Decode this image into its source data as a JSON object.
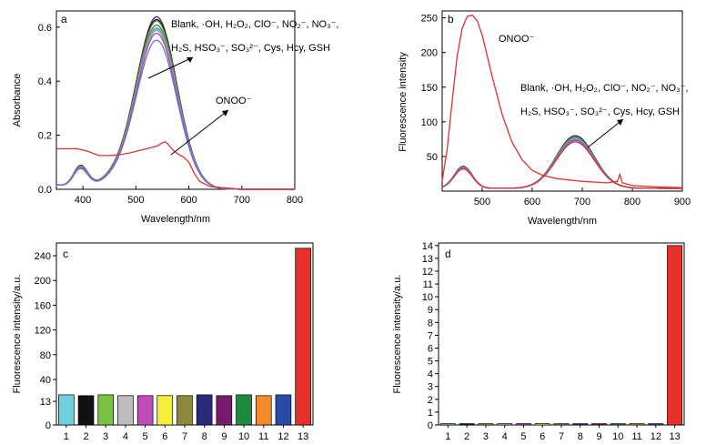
{
  "panels": {
    "a": "a",
    "b": "b",
    "c": "c",
    "d": "d"
  },
  "annotations": {
    "a_line1": "Blank, ·OH, H₂O₂, ClO⁻, NO₂⁻, NO₃⁻,",
    "a_line2": "H₂S, HSO₃⁻, SO₃²⁻, Cys, Hcy, GSH",
    "a_onoo": "ONOO⁻",
    "b_onoo": "ONOO⁻",
    "b_line1": "Blank, ·OH, H₂O₂, ClO⁻, NO₂⁻, NO₃⁻,",
    "b_line2": "H₂S, HSO₃⁻, SO₃²⁻, Cys, Hcy, GSH"
  },
  "chart_data": [
    {
      "id": "a",
      "type": "line",
      "xlabel": "Wavelength/nm",
      "ylabel": "Absorbance",
      "xlim": [
        350,
        800
      ],
      "ylim": [
        0,
        0.66
      ],
      "xticks": [
        400,
        500,
        600,
        700,
        800
      ],
      "yticks": [
        0.0,
        0.2,
        0.4,
        0.6
      ],
      "ytick_labels": [
        "0.0",
        "0.2",
        "0.4",
        "0.6"
      ],
      "series": [
        {
          "group": "others",
          "color": "#2c2c84",
          "peak": 0.63
        },
        {
          "group": "others",
          "color": "#000000",
          "peak": 0.62
        },
        {
          "group": "others",
          "color": "#8b8b2c",
          "peak": 0.615
        },
        {
          "group": "others",
          "color": "#3a8a3a",
          "peak": 0.6
        },
        {
          "group": "others",
          "color": "#6ab0e0",
          "peak": 0.59
        },
        {
          "group": "others",
          "color": "#5ab0a0",
          "peak": 0.585
        },
        {
          "group": "others",
          "color": "#aaaaaa",
          "peak": 0.58
        },
        {
          "group": "others",
          "color": "#b040b0",
          "peak": 0.57
        },
        {
          "group": "others",
          "color": "#7070d0",
          "peak": 0.545
        },
        {
          "group": "ONOO⁻",
          "color": "#e03030",
          "x": [
            350,
            370,
            390,
            410,
            430,
            450,
            470,
            490,
            500,
            510,
            520,
            530,
            540,
            550,
            555,
            560,
            570,
            580,
            590,
            600,
            610,
            620,
            640,
            700,
            800
          ],
          "y": [
            0.15,
            0.15,
            0.15,
            0.14,
            0.125,
            0.125,
            0.128,
            0.135,
            0.14,
            0.145,
            0.15,
            0.155,
            0.16,
            0.172,
            0.176,
            0.168,
            0.145,
            0.13,
            0.12,
            0.1,
            0.06,
            0.03,
            0.01,
            0.0,
            0.0
          ]
        }
      ]
    },
    {
      "id": "b",
      "type": "line",
      "xlabel": "Wavelength/nm",
      "ylabel": "Fluorescence intensity",
      "xlim": [
        420,
        900
      ],
      "ylim": [
        0,
        260
      ],
      "xticks": [
        500,
        600,
        700,
        800,
        900
      ],
      "yticks": [
        50,
        100,
        150,
        200,
        250
      ],
      "series": [
        {
          "group": "others",
          "color": "#2c2c84",
          "peak": 76
        },
        {
          "group": "others",
          "color": "#3a8a3a",
          "peak": 74
        },
        {
          "group": "others",
          "color": "#8b8b2c",
          "peak": 73
        },
        {
          "group": "others",
          "color": "#5ab0a0",
          "peak": 72
        },
        {
          "group": "others",
          "color": "#b040b0",
          "peak": 70
        },
        {
          "group": "others",
          "color": "#7070d0",
          "peak": 69
        },
        {
          "group": "others",
          "color": "#e03030",
          "peak": 67
        },
        {
          "group": "ONOO⁻",
          "color": "#e03030",
          "x": [
            420,
            430,
            440,
            450,
            460,
            470,
            480,
            490,
            500,
            520,
            540,
            560,
            580,
            600,
            620,
            650,
            700,
            750,
            770,
            775,
            780,
            800,
            850,
            900
          ],
          "y": [
            15,
            60,
            130,
            195,
            235,
            252,
            254,
            246,
            225,
            165,
            110,
            70,
            45,
            30,
            23,
            18,
            14,
            12,
            14,
            24,
            12,
            8,
            6,
            5
          ]
        }
      ]
    },
    {
      "id": "c",
      "type": "bar",
      "ylabel": "Fluorescence intensity/a.u.",
      "categories": [
        "1",
        "2",
        "3",
        "4",
        "5",
        "6",
        "7",
        "8",
        "9",
        "10",
        "11",
        "12",
        "13"
      ],
      "values": [
        21,
        20,
        21,
        20,
        20,
        20,
        20,
        21,
        20,
        21,
        20,
        21,
        252
      ],
      "colors": [
        "#6fcfdc",
        "#111111",
        "#7cc242",
        "#bdbdbd",
        "#c04cb8",
        "#f5ef3a",
        "#8c8a3a",
        "#2a2a7a",
        "#7a1a6e",
        "#1e8a3c",
        "#f58a2a",
        "#2a4aa8",
        "#e8302a"
      ],
      "ylim": [
        0,
        255
      ],
      "yticks": [
        0,
        13,
        40,
        80,
        120,
        160,
        200,
        240
      ]
    },
    {
      "id": "d",
      "type": "bar",
      "ylabel": "Fluorescence intensity/a.u.",
      "categories": [
        "1",
        "2",
        "3",
        "4",
        "5",
        "6",
        "7",
        "8",
        "9",
        "10",
        "11",
        "12",
        "13"
      ],
      "values": [
        0.1,
        0.1,
        0.1,
        0.1,
        0.1,
        0.1,
        0.1,
        0.1,
        0.1,
        0.1,
        0.1,
        0.1,
        14
      ],
      "colors": [
        "#6fcfdc",
        "#111111",
        "#7cc242",
        "#bdbdbd",
        "#c04cb8",
        "#f5ef3a",
        "#8c8a3a",
        "#2a2a7a",
        "#7a1a6e",
        "#1e8a3c",
        "#f58a2a",
        "#2a4aa8",
        "#e8302a"
      ],
      "ylim": [
        0,
        14.2
      ],
      "yticks": [
        0,
        1,
        2,
        3,
        4,
        5,
        6,
        7,
        8,
        9,
        10,
        11,
        12,
        13,
        14
      ]
    }
  ]
}
